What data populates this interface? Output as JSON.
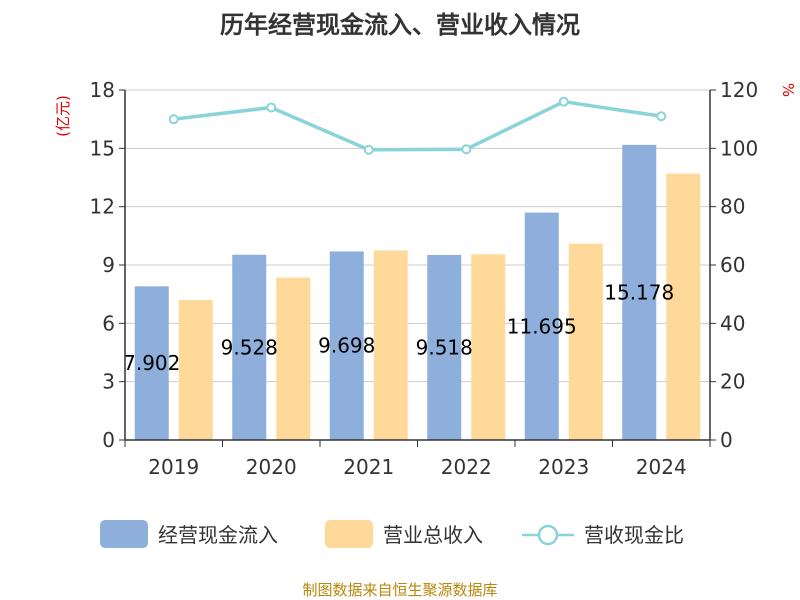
{
  "chart_data": {
    "type": "bar",
    "title": "历年经营现金流入、营业收入情况",
    "categories": [
      "2019",
      "2020",
      "2021",
      "2022",
      "2023",
      "2024"
    ],
    "series": [
      {
        "name": "经营现金流入",
        "type": "bar",
        "axis": "left",
        "color": "#8eaedb",
        "values": [
          7.902,
          9.528,
          9.698,
          9.518,
          11.695,
          15.178
        ],
        "labels": [
          "7.902",
          "9.528",
          "9.698",
          "9.518",
          "11.695",
          "15.178"
        ]
      },
      {
        "name": "营业总收入",
        "type": "bar",
        "axis": "left",
        "color": "#ffd999",
        "values": [
          7.2,
          8.35,
          9.75,
          9.55,
          10.1,
          13.7
        ]
      },
      {
        "name": "营收现金比",
        "type": "line",
        "axis": "right",
        "color": "#88d4d8",
        "values": [
          110,
          114,
          99.5,
          99.7,
          116,
          111
        ]
      }
    ],
    "y_left": {
      "unit": "(亿元)",
      "ylim": [
        0,
        18
      ],
      "ticks": [
        "0",
        "3",
        "6",
        "9",
        "12",
        "15",
        "18"
      ]
    },
    "y_right": {
      "unit": "%",
      "ylim": [
        0,
        120
      ],
      "ticks": [
        "0",
        "20",
        "40",
        "60",
        "80",
        "100",
        "120"
      ]
    },
    "grid": true,
    "legend_position": "bottom",
    "source": "制图数据来自恒生聚源数据库"
  }
}
